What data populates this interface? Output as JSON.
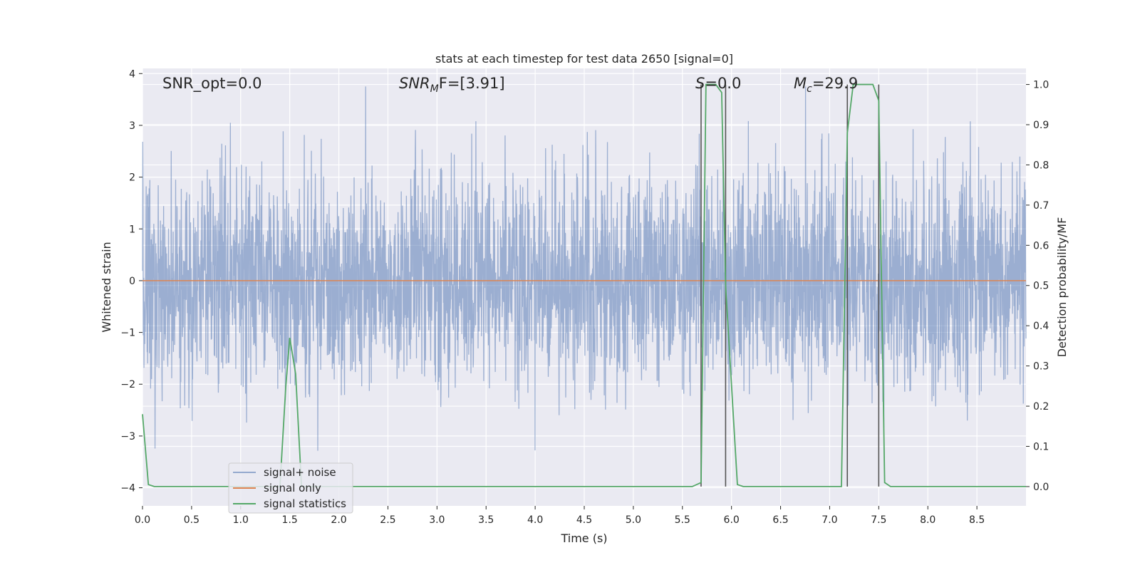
{
  "chart_data": {
    "type": "line",
    "title": "stats at each timestep for test data 2650 [signal=0]",
    "xlabel": "Time (s)",
    "ylabel_left": "Whitened strain",
    "ylabel_right": "Detection probability/MF",
    "xlim": [
      0.0,
      9.0
    ],
    "ylim_left": [
      -4.35,
      4.1
    ],
    "ylim_right": [
      -0.048,
      1.04
    ],
    "x_ticks": [
      "0.0",
      "0.5",
      "1.0",
      "1.5",
      "2.0",
      "2.5",
      "3.0",
      "3.5",
      "4.0",
      "4.5",
      "5.0",
      "5.5",
      "6.0",
      "6.5",
      "7.0",
      "7.5",
      "8.0",
      "8.5"
    ],
    "y_left_ticks": [
      "4",
      "3",
      "2",
      "1",
      "0",
      "−1",
      "−2",
      "−3",
      "−4"
    ],
    "y_right_ticks": [
      "1.0",
      "0.9",
      "0.8",
      "0.7",
      "0.6",
      "0.5",
      "0.4",
      "0.3",
      "0.2",
      "0.1",
      "0.0"
    ],
    "grid": true,
    "legend_position": "lower-left",
    "annotations": {
      "snr_opt": "SNR_opt=0.0",
      "snr_mf_main": "SNR",
      "snr_mf_sub": "M",
      "snr_mf_rest": "F=[3.91]",
      "s_main": "S",
      "s_rest": "=0.0",
      "mc_main": "M",
      "mc_sub": "c",
      "mc_rest": "=29.9"
    },
    "vertical_lines_x": [
      5.69,
      5.94,
      7.18,
      7.5
    ],
    "series": [
      {
        "name": "signal+ noise",
        "color": "#4c72b0",
        "axis": "left",
        "description_values": "whitened noise, approximately Gaussian, spanning roughly -3.8 to 3.8"
      },
      {
        "name": "signal only",
        "color": "#dd8452",
        "axis": "left",
        "x": [
          0.0,
          9.0
        ],
        "y": [
          0.0,
          0.0
        ]
      },
      {
        "name": "signal statistics",
        "color": "#55a868",
        "axis": "right",
        "x": [
          0.0,
          0.06,
          0.12,
          0.2,
          1.4,
          1.46,
          1.5,
          1.56,
          1.62,
          1.7,
          5.6,
          5.69,
          5.74,
          5.84,
          5.9,
          5.94,
          6.06,
          6.12,
          7.12,
          7.18,
          7.24,
          7.44,
          7.5,
          7.56,
          7.62,
          9.0
        ],
        "y": [
          0.18,
          0.005,
          0.0,
          0.0,
          0.0,
          0.25,
          0.37,
          0.28,
          0.0,
          0.0,
          0.0,
          0.01,
          1.0,
          1.0,
          0.98,
          0.5,
          0.005,
          0.0,
          0.0,
          0.88,
          1.0,
          1.0,
          0.96,
          0.01,
          0.0,
          0.0
        ]
      }
    ]
  }
}
